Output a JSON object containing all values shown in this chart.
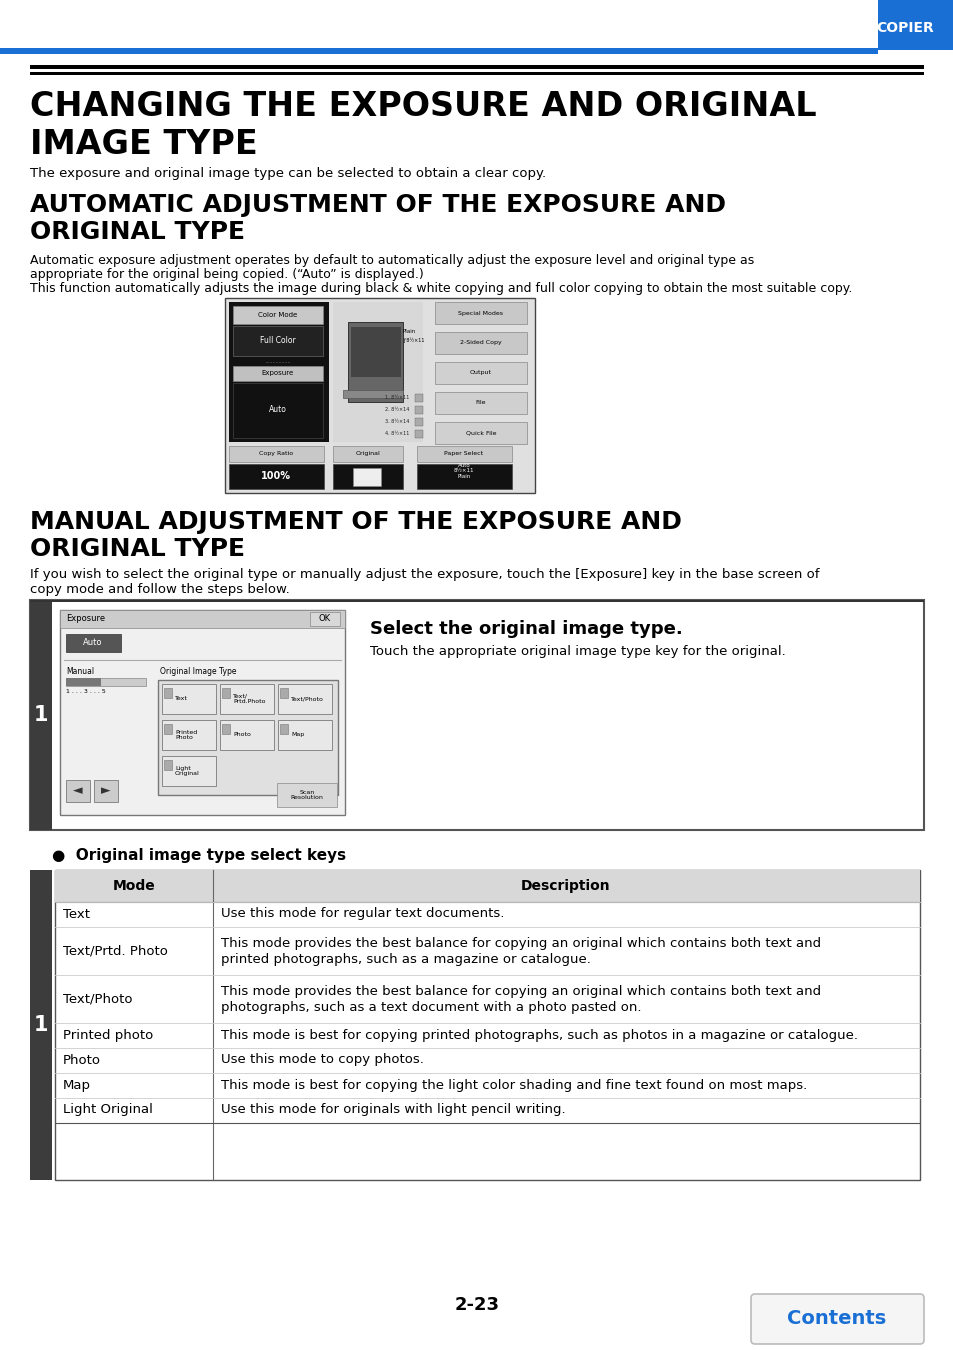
{
  "page_header_text": "COPIER",
  "header_blue": "#1a6fd4",
  "main_title_line1": "CHANGING THE EXPOSURE AND ORIGINAL",
  "main_title_line2": "IMAGE TYPE",
  "body0": "The exposure and original image type can be selected to obtain a clear copy.",
  "subtitle1_line1": "AUTOMATIC ADJUSTMENT OF THE EXPOSURE AND",
  "subtitle1_line2": "ORIGINAL TYPE",
  "s1_body1": "Automatic exposure adjustment operates by default to automatically adjust the exposure level and original type as",
  "s1_body2": "appropriate for the original being copied. (“Auto” is displayed.)",
  "s1_body3": "This function automatically adjusts the image during black & white copying and full color copying to obtain the most suitable copy.",
  "subtitle2_line1": "MANUAL ADJUSTMENT OF THE EXPOSURE AND",
  "subtitle2_line2": "ORIGINAL TYPE",
  "s2_body1": "If you wish to select the original type or manually adjust the exposure, touch the [Exposure] key in the base screen of",
  "s2_body2": "copy mode and follow the steps below.",
  "step_title": "Select the original image type.",
  "step_body": "Touch the appropriate original image type key for the original.",
  "bullet_title": "●  Original image type select keys",
  "table_headers": [
    "Mode",
    "Description"
  ],
  "table_rows": [
    [
      "Text",
      "Use this mode for regular text documents."
    ],
    [
      "Text/Prtd. Photo",
      "This mode provides the best balance for copying an original which contains both text and\nprinted photographs, such as a magazine or catalogue."
    ],
    [
      "Text/Photo",
      "This mode provides the best balance for copying an original which contains both text and\nphotographs, such as a text document with a photo pasted on."
    ],
    [
      "Printed photo",
      "This mode is best for copying printed photographs, such as photos in a magazine or catalogue."
    ],
    [
      "Photo",
      "Use this mode to copy photos."
    ],
    [
      "Map",
      "This mode is best for copying the light color shading and fine text found on most maps."
    ],
    [
      "Light Original",
      "Use this mode for originals with light pencil writing."
    ]
  ],
  "page_number": "2-23",
  "contents_button_text": "Contents",
  "contents_color": "#1a6fd4",
  "sidebar_dark": "#3c3c3c",
  "bg_color": "#ffffff"
}
